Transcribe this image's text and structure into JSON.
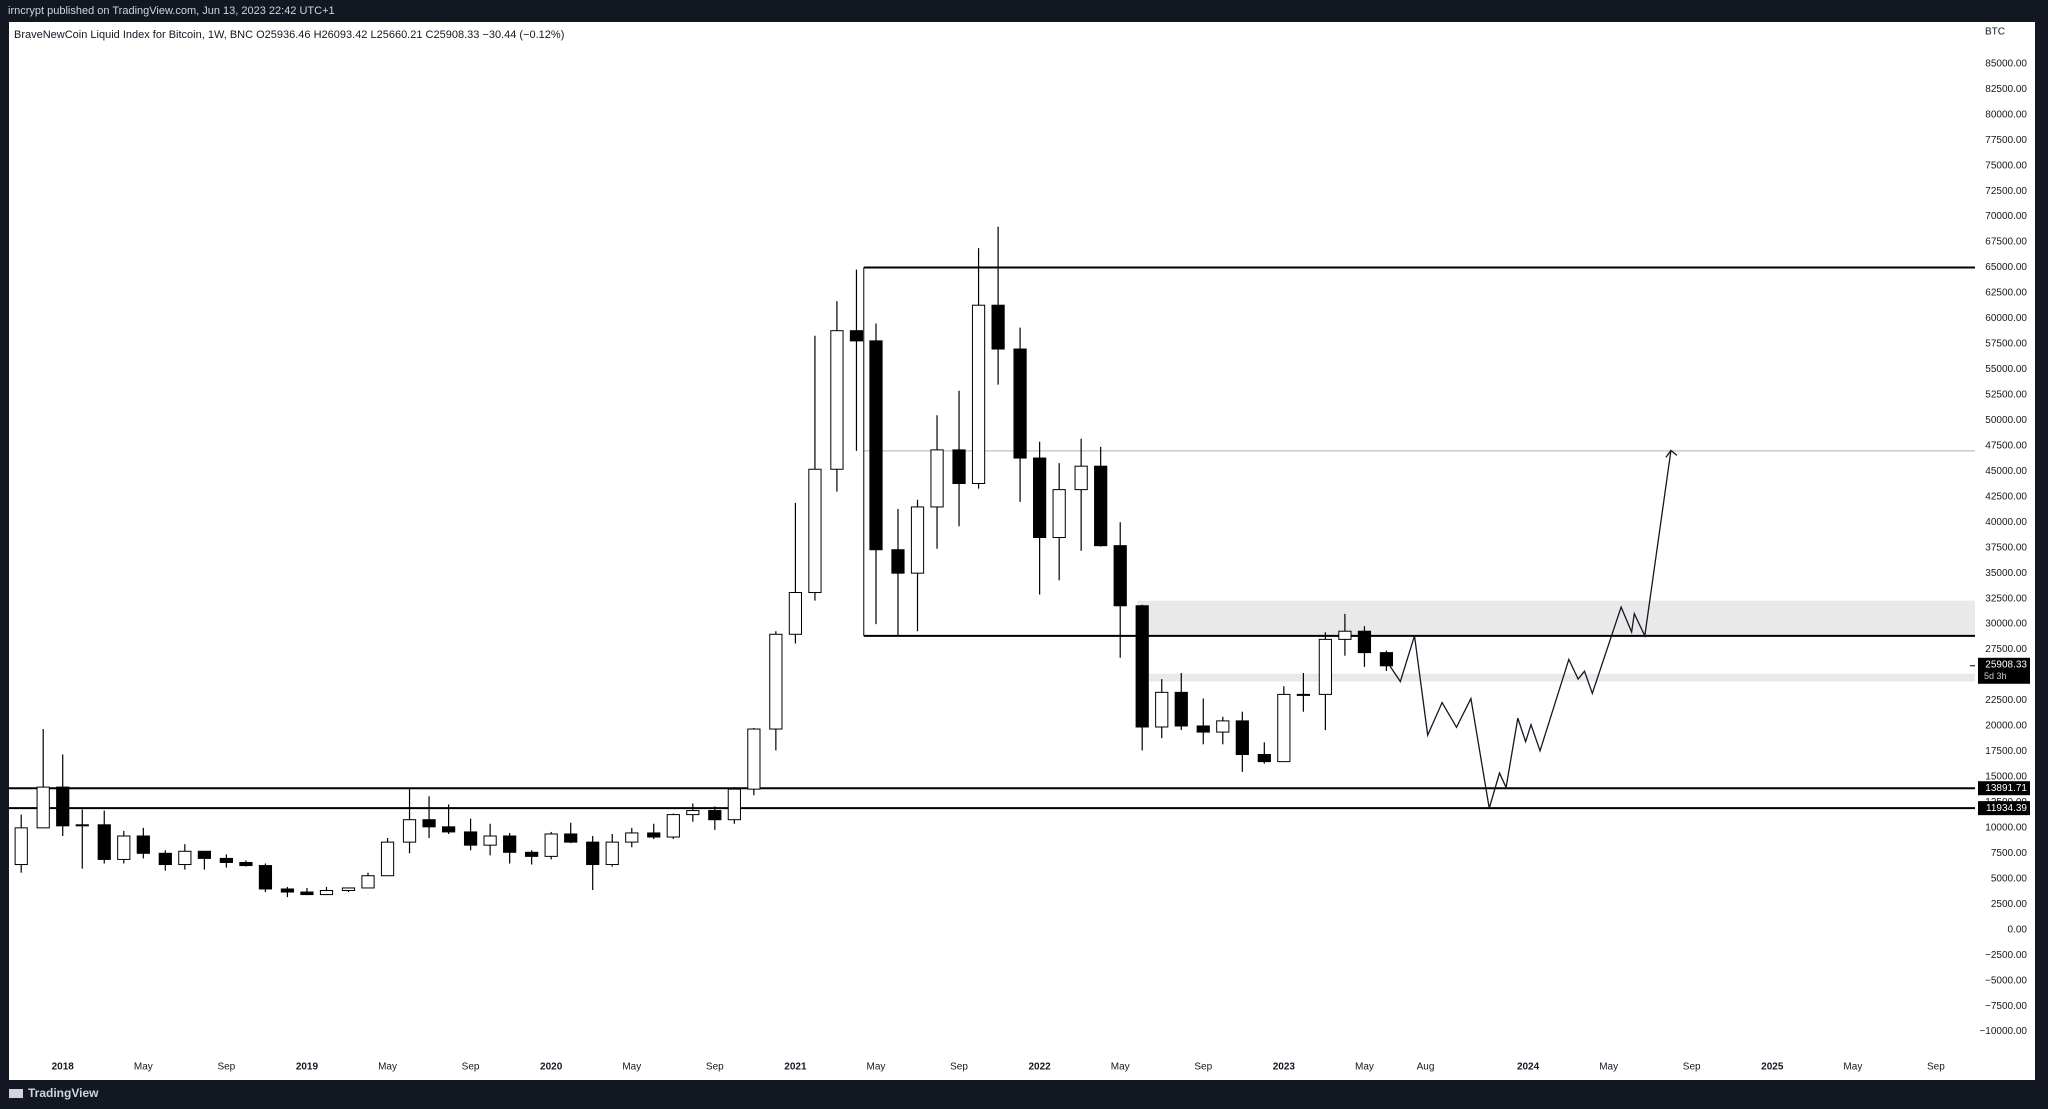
{
  "header": {
    "published": "irncrypt published on TradingView.com, Jun 13, 2023 22:42 UTC+1",
    "brand": "TradingView"
  },
  "chart_data": {
    "type": "candlestick",
    "legend": "BraveNewCoin Liquid Index for Bitcoin, 1W, BNC  O25936.46  H26093.42  L25660.21  C25908.33  −30.44 (−0.12%)",
    "currency": "BTC",
    "up_color": "#ffffff",
    "down_color": "#000000",
    "edge_color": "#000000",
    "xlim": [
      2017.78,
      2025.83
    ],
    "ylim": [
      -14750,
      89100
    ],
    "xticks": [
      {
        "value": 2018,
        "label": "2018"
      },
      {
        "value": 2018.33,
        "label": "May"
      },
      {
        "value": 2018.67,
        "label": "Sep"
      },
      {
        "value": 2019,
        "label": "2019"
      },
      {
        "value": 2019.33,
        "label": "May"
      },
      {
        "value": 2019.67,
        "label": "Sep"
      },
      {
        "value": 2020,
        "label": "2020"
      },
      {
        "value": 2020.33,
        "label": "May"
      },
      {
        "value": 2020.67,
        "label": "Sep"
      },
      {
        "value": 2021,
        "label": "2021"
      },
      {
        "value": 2021.33,
        "label": "May"
      },
      {
        "value": 2021.67,
        "label": "Sep"
      },
      {
        "value": 2022,
        "label": "2022"
      },
      {
        "value": 2022.33,
        "label": "May"
      },
      {
        "value": 2022.67,
        "label": "Sep"
      },
      {
        "value": 2023,
        "label": "2023"
      },
      {
        "value": 2023.33,
        "label": "May"
      },
      {
        "value": 2023.58,
        "label": "Aug"
      },
      {
        "value": 2024,
        "label": "2024"
      },
      {
        "value": 2024.33,
        "label": "May"
      },
      {
        "value": 2024.67,
        "label": "Sep"
      },
      {
        "value": 2025,
        "label": "2025"
      },
      {
        "value": 2025.33,
        "label": "May"
      },
      {
        "value": 2025.67,
        "label": "Sep"
      }
    ],
    "yticks": [
      {
        "value": 85000,
        "label": "85000.00"
      },
      {
        "value": 82500,
        "label": "82500.00"
      },
      {
        "value": 80000,
        "label": "80000.00"
      },
      {
        "value": 77500,
        "label": "77500.00"
      },
      {
        "value": 75000,
        "label": "75000.00"
      },
      {
        "value": 72500,
        "label": "72500.00"
      },
      {
        "value": 70000,
        "label": "70000.00"
      },
      {
        "value": 67500,
        "label": "67500.00"
      },
      {
        "value": 65000,
        "label": "65000.00"
      },
      {
        "value": 62500,
        "label": "62500.00"
      },
      {
        "value": 60000,
        "label": "60000.00"
      },
      {
        "value": 57500,
        "label": "57500.00"
      },
      {
        "value": 55000,
        "label": "55000.00"
      },
      {
        "value": 52500,
        "label": "52500.00"
      },
      {
        "value": 50000,
        "label": "50000.00"
      },
      {
        "value": 47500,
        "label": "47500.00"
      },
      {
        "value": 45000,
        "label": "45000.00"
      },
      {
        "value": 42500,
        "label": "42500.00"
      },
      {
        "value": 40000,
        "label": "40000.00"
      },
      {
        "value": 37500,
        "label": "37500.00"
      },
      {
        "value": 35000,
        "label": "35000.00"
      },
      {
        "value": 32500,
        "label": "32500.00"
      },
      {
        "value": 30000,
        "label": "30000.00"
      },
      {
        "value": 27500,
        "label": "27500.00"
      },
      {
        "value": 25000,
        "label": "25000.00"
      },
      {
        "value": 22500,
        "label": "22500.00"
      },
      {
        "value": 20000,
        "label": "20000.00"
      },
      {
        "value": 17500,
        "label": "17500.00"
      },
      {
        "value": 15000,
        "label": "15000.00"
      },
      {
        "value": 12500,
        "label": "12500.00"
      },
      {
        "value": 10000,
        "label": "10000.00"
      },
      {
        "value": 7500,
        "label": "7500.00"
      },
      {
        "value": 5000,
        "label": "5000.00"
      },
      {
        "value": 2500,
        "label": "2500.00"
      },
      {
        "value": 0,
        "label": "0.00"
      },
      {
        "value": -2500,
        "label": "−2500.00"
      },
      {
        "value": -5000,
        "label": "−5000.00"
      },
      {
        "value": -7500,
        "label": "−7500.00"
      },
      {
        "value": -10000,
        "label": "−10000.00"
      }
    ],
    "candles": [
      {
        "x": 2017.83,
        "open": 6400,
        "high": 11300,
        "low": 5600,
        "close": 10000
      },
      {
        "x": 2017.92,
        "open": 10000,
        "high": 19700,
        "low": 10000,
        "close": 14000
      },
      {
        "x": 2018.0,
        "open": 14000,
        "high": 17200,
        "low": 9200,
        "close": 10200
      },
      {
        "x": 2018.08,
        "open": 10200,
        "high": 11800,
        "low": 6000,
        "close": 10300
      },
      {
        "x": 2018.17,
        "open": 10300,
        "high": 11700,
        "low": 6500,
        "close": 6900
      },
      {
        "x": 2018.25,
        "open": 6900,
        "high": 9700,
        "low": 6500,
        "close": 9200
      },
      {
        "x": 2018.33,
        "open": 9200,
        "high": 10000,
        "low": 7000,
        "close": 7500
      },
      {
        "x": 2018.42,
        "open": 7500,
        "high": 7800,
        "low": 5800,
        "close": 6400
      },
      {
        "x": 2018.5,
        "open": 6400,
        "high": 8400,
        "low": 5900,
        "close": 7700
      },
      {
        "x": 2018.58,
        "open": 7700,
        "high": 7700,
        "low": 5900,
        "close": 7000
      },
      {
        "x": 2018.67,
        "open": 7000,
        "high": 7400,
        "low": 6100,
        "close": 6600
      },
      {
        "x": 2018.75,
        "open": 6600,
        "high": 6800,
        "low": 6200,
        "close": 6300
      },
      {
        "x": 2018.83,
        "open": 6300,
        "high": 6500,
        "low": 3700,
        "close": 4000
      },
      {
        "x": 2018.92,
        "open": 4000,
        "high": 4200,
        "low": 3200,
        "close": 3700
      },
      {
        "x": 2019.0,
        "open": 3700,
        "high": 4100,
        "low": 3400,
        "close": 3450
      },
      {
        "x": 2019.08,
        "open": 3450,
        "high": 4200,
        "low": 3400,
        "close": 3850
      },
      {
        "x": 2019.17,
        "open": 3850,
        "high": 4100,
        "low": 3700,
        "close": 4100
      },
      {
        "x": 2019.25,
        "open": 4100,
        "high": 5600,
        "low": 4100,
        "close": 5300
      },
      {
        "x": 2019.33,
        "open": 5300,
        "high": 9000,
        "low": 5300,
        "close": 8600
      },
      {
        "x": 2019.42,
        "open": 8600,
        "high": 13800,
        "low": 7500,
        "close": 10800
      },
      {
        "x": 2019.5,
        "open": 10800,
        "high": 13100,
        "low": 9000,
        "close": 10100
      },
      {
        "x": 2019.58,
        "open": 10100,
        "high": 12300,
        "low": 9400,
        "close": 9600
      },
      {
        "x": 2019.67,
        "open": 9600,
        "high": 10900,
        "low": 7800,
        "close": 8300
      },
      {
        "x": 2019.75,
        "open": 8300,
        "high": 10400,
        "low": 7300,
        "close": 9200
      },
      {
        "x": 2019.83,
        "open": 9200,
        "high": 9500,
        "low": 6500,
        "close": 7600
      },
      {
        "x": 2019.92,
        "open": 7600,
        "high": 7800,
        "low": 6400,
        "close": 7200
      },
      {
        "x": 2020.0,
        "open": 7200,
        "high": 9600,
        "low": 6900,
        "close": 9400
      },
      {
        "x": 2020.08,
        "open": 9400,
        "high": 10500,
        "low": 8500,
        "close": 8600
      },
      {
        "x": 2020.17,
        "open": 8600,
        "high": 9200,
        "low": 3900,
        "close": 6400
      },
      {
        "x": 2020.25,
        "open": 6400,
        "high": 9400,
        "low": 6200,
        "close": 8600
      },
      {
        "x": 2020.33,
        "open": 8600,
        "high": 10000,
        "low": 8100,
        "close": 9500
      },
      {
        "x": 2020.42,
        "open": 9500,
        "high": 10400,
        "low": 8900,
        "close": 9100
      },
      {
        "x": 2020.5,
        "open": 9100,
        "high": 11400,
        "low": 8900,
        "close": 11300
      },
      {
        "x": 2020.58,
        "open": 11300,
        "high": 12400,
        "low": 10600,
        "close": 11700
      },
      {
        "x": 2020.67,
        "open": 11700,
        "high": 12100,
        "low": 9800,
        "close": 10800
      },
      {
        "x": 2020.75,
        "open": 10800,
        "high": 14000,
        "low": 10400,
        "close": 13800
      },
      {
        "x": 2020.83,
        "open": 13800,
        "high": 19800,
        "low": 13200,
        "close": 19700
      },
      {
        "x": 2020.92,
        "open": 19700,
        "high": 29300,
        "low": 17600,
        "close": 29000
      },
      {
        "x": 2021.0,
        "open": 29000,
        "high": 41900,
        "low": 28100,
        "close": 33100
      },
      {
        "x": 2021.08,
        "open": 33100,
        "high": 58300,
        "low": 32300,
        "close": 45200
      },
      {
        "x": 2021.17,
        "open": 45200,
        "high": 61700,
        "low": 43000,
        "close": 58800
      },
      {
        "x": 2021.25,
        "open": 58800,
        "high": 64800,
        "low": 47000,
        "close": 57800
      },
      {
        "x": 2021.33,
        "open": 57800,
        "high": 59500,
        "low": 30000,
        "close": 37300
      },
      {
        "x": 2021.42,
        "open": 37300,
        "high": 41300,
        "low": 28800,
        "close": 35000
      },
      {
        "x": 2021.5,
        "open": 35000,
        "high": 42200,
        "low": 29300,
        "close": 41500
      },
      {
        "x": 2021.58,
        "open": 41500,
        "high": 50500,
        "low": 37400,
        "close": 47100
      },
      {
        "x": 2021.67,
        "open": 47100,
        "high": 52900,
        "low": 39600,
        "close": 43800
      },
      {
        "x": 2021.75,
        "open": 43800,
        "high": 66900,
        "low": 43300,
        "close": 61300
      },
      {
        "x": 2021.83,
        "open": 61300,
        "high": 69000,
        "low": 53500,
        "close": 57000
      },
      {
        "x": 2021.92,
        "open": 57000,
        "high": 59100,
        "low": 42000,
        "close": 46300
      },
      {
        "x": 2022.0,
        "open": 46300,
        "high": 47900,
        "low": 32900,
        "close": 38500
      },
      {
        "x": 2022.08,
        "open": 38500,
        "high": 45800,
        "low": 34300,
        "close": 43200
      },
      {
        "x": 2022.17,
        "open": 43200,
        "high": 48200,
        "low": 37200,
        "close": 45500
      },
      {
        "x": 2022.25,
        "open": 45500,
        "high": 47400,
        "low": 37600,
        "close": 37700
      },
      {
        "x": 2022.33,
        "open": 37700,
        "high": 40000,
        "low": 26700,
        "close": 31800
      },
      {
        "x": 2022.42,
        "open": 31800,
        "high": 31900,
        "low": 17600,
        "close": 19900
      },
      {
        "x": 2022.5,
        "open": 19900,
        "high": 24600,
        "low": 18800,
        "close": 23300
      },
      {
        "x": 2022.58,
        "open": 23300,
        "high": 25200,
        "low": 19600,
        "close": 20000
      },
      {
        "x": 2022.67,
        "open": 20000,
        "high": 22700,
        "low": 18200,
        "close": 19400
      },
      {
        "x": 2022.75,
        "open": 19400,
        "high": 20900,
        "low": 18200,
        "close": 20500
      },
      {
        "x": 2022.83,
        "open": 20500,
        "high": 21400,
        "low": 15500,
        "close": 17200
      },
      {
        "x": 2022.92,
        "open": 17200,
        "high": 18400,
        "low": 16300,
        "close": 16500
      },
      {
        "x": 2023.0,
        "open": 16500,
        "high": 23900,
        "low": 16500,
        "close": 23100
      },
      {
        "x": 2023.08,
        "open": 23100,
        "high": 25200,
        "low": 21400,
        "close": 23100
      },
      {
        "x": 2023.17,
        "open": 23100,
        "high": 29200,
        "low": 19600,
        "close": 28500
      },
      {
        "x": 2023.25,
        "open": 28500,
        "high": 31000,
        "low": 26900,
        "close": 29300
      },
      {
        "x": 2023.33,
        "open": 29300,
        "high": 29800,
        "low": 25800,
        "close": 27200
      },
      {
        "x": 2023.42,
        "open": 27200,
        "high": 27400,
        "low": 25400,
        "close": 25908.33
      }
    ],
    "current_price": 25908.33,
    "countdown": "5d 3h",
    "levels": [
      {
        "value": 65000,
        "from": 2021.28
      },
      {
        "value": 28850,
        "from": 2021.28
      },
      {
        "value": 13891.71,
        "from": 2017.78,
        "labelled": true
      },
      {
        "value": 11934.39,
        "from": 2017.78,
        "labelled": true
      }
    ],
    "guide_level": {
      "value": 47000,
      "from": 2021.28
    },
    "zones": [
      {
        "from": 2022.4,
        "top": 32300,
        "bottom": 28850
      },
      {
        "from": 2022.4,
        "top": 25130,
        "bottom": 24360
      }
    ],
    "projection": {
      "x": [
        2023.434,
        2023.477,
        2023.535,
        2023.589,
        2023.648,
        2023.707,
        2023.766,
        2023.841,
        2023.883,
        2023.91,
        2023.958,
        2023.99,
        2024.012,
        2024.049,
        2024.167,
        2024.205,
        2024.231,
        2024.263,
        2024.381,
        2024.424,
        2024.435,
        2024.478,
        2024.585
      ],
      "values": [
        25900,
        24360,
        28850,
        19100,
        22300,
        19870,
        22690,
        11920,
        15380,
        13970,
        20770,
        18460,
        20130,
        17560,
        26540,
        24610,
        25380,
        23200,
        31670,
        29230,
        31020,
        28850,
        47050
      ]
    }
  }
}
